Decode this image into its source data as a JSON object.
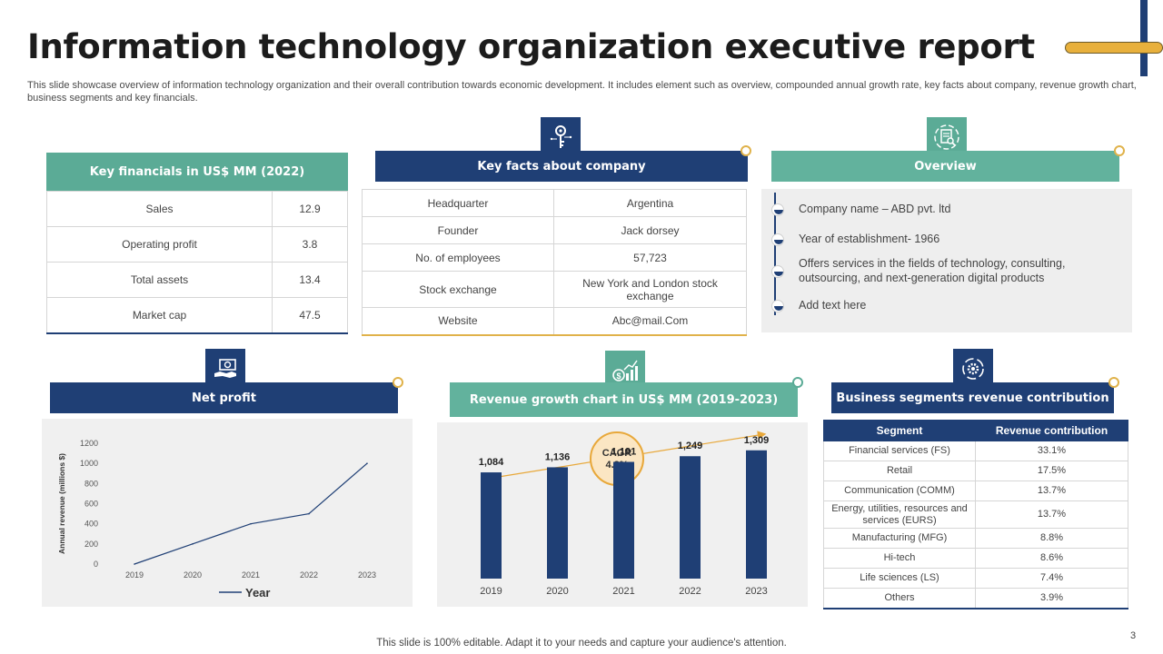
{
  "header": {
    "title": "Information technology organization executive report",
    "subtitle": "This slide showcase overview of information technology organization and their overall contribution towards economic development. It includes element such as overview, compounded annual growth rate, key facts about company, revenue growth chart, business segments and key financials."
  },
  "key_financials": {
    "title": "Key financials  in US$  MM (2022)",
    "rows": [
      {
        "label": "Sales",
        "value": "12.9"
      },
      {
        "label": "Operating profit",
        "value": "3.8"
      },
      {
        "label": "Total assets",
        "value": "13.4"
      },
      {
        "label": "Market cap",
        "value": "47.5"
      }
    ]
  },
  "key_facts": {
    "title": "Key facts about company",
    "icon": "key-network-icon",
    "rows": [
      {
        "label": "Headquarter",
        "value": "Argentina"
      },
      {
        "label": "Founder",
        "value": "Jack dorsey"
      },
      {
        "label": "No. of employees",
        "value": "57,723"
      },
      {
        "label": "Stock exchange",
        "value": "New York and London stock exchange"
      },
      {
        "label": "Website",
        "value": "Abc@mail.Com"
      }
    ]
  },
  "overview": {
    "title": "Overview",
    "icon": "document-magnifier-icon",
    "items": [
      "Company name – ABD pvt. ltd",
      "Year of establishment- 1966",
      "Offers services in the fields of technology, consulting, outsourcing, and next-generation  digital products",
      "Add text here"
    ]
  },
  "net_profit": {
    "title": "Net profit",
    "icon": "money-hand-icon"
  },
  "revenue_growth": {
    "title": "Revenue growth chart in US$  MM (2019-2023)",
    "icon": "money-growth-icon",
    "cagr_label": "CAGR",
    "cagr_value": "4.8%"
  },
  "segments": {
    "title": "Business segments revenue contribution",
    "icon": "gear-cycle-icon",
    "headers": [
      "Segment",
      "Revenue contribution"
    ],
    "rows": [
      {
        "segment": "Financial services (FS)",
        "value": "33.1%"
      },
      {
        "segment": "Retail",
        "value": "17.5%"
      },
      {
        "segment": "Communication  (COMM)",
        "value": "13.7%"
      },
      {
        "segment": "Energy, utilities, resources and services (EURS)",
        "value": "13.7%"
      },
      {
        "segment": "Manufacturing (MFG)",
        "value": "8.8%"
      },
      {
        "segment": "Hi-tech",
        "value": "8.6%"
      },
      {
        "segment": "Life sciences (LS)",
        "value": "7.4%"
      },
      {
        "segment": "Others",
        "value": "3.9%"
      }
    ]
  },
  "footer": {
    "note": "This slide is 100% editable. Adapt it to your needs and capture your audience's attention.",
    "page_number": "3"
  },
  "colors": {
    "navy": "#1f3f75",
    "teal": "#5bab96",
    "gold": "#e0b24a",
    "panel_gray": "#f0f0f0"
  },
  "chart_data": [
    {
      "type": "line",
      "title": "Net profit",
      "x": [
        "2019",
        "2020",
        "2021",
        "2022",
        "2023"
      ],
      "series": [
        {
          "name": "Year",
          "values": [
            0,
            200,
            400,
            500,
            1000
          ]
        }
      ],
      "xlabel": "",
      "ylabel": "Annual revenue (millions $)",
      "ylim": [
        0,
        1200
      ],
      "yticks": [
        0,
        200,
        400,
        600,
        800,
        1000,
        1200
      ],
      "legend": "bottom",
      "legend_label": "Year"
    },
    {
      "type": "bar",
      "title": "Revenue growth chart in US$  MM (2019-2023)",
      "categories": [
        "2019",
        "2020",
        "2021",
        "2022",
        "2023"
      ],
      "values": [
        1084,
        1136,
        1191,
        1249,
        1309
      ],
      "value_labels": [
        "1,084",
        "1,136",
        "1,191",
        "1,249",
        "1,309"
      ],
      "ylim": [
        0,
        1400
      ],
      "annotation": "CAGR 4.8%"
    }
  ]
}
